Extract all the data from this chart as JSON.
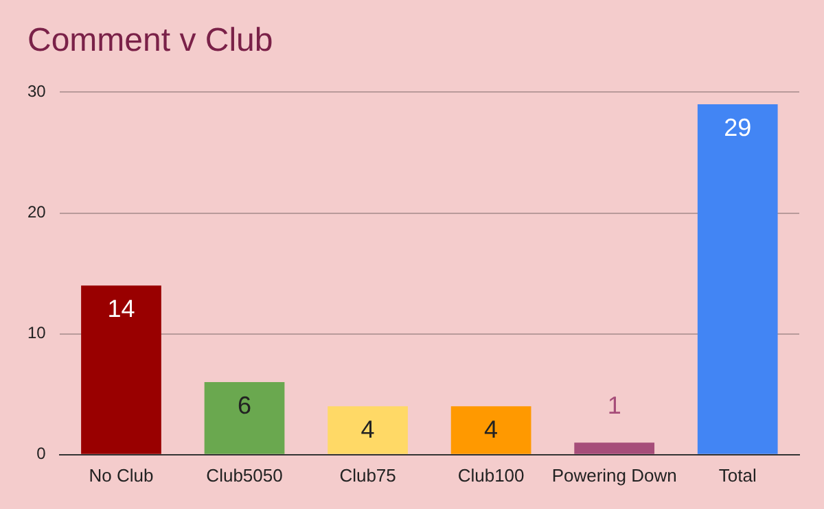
{
  "chart_data": {
    "type": "bar",
    "title": "Comment v Club",
    "categories": [
      "No Club",
      "Club5050",
      "Club75",
      "Club100",
      "Powering Down",
      "Total"
    ],
    "values": [
      14,
      6,
      4,
      4,
      1,
      29
    ],
    "colors": [
      "#990000",
      "#6aa84f",
      "#ffd966",
      "#ff9900",
      "#a64d79",
      "#4285f4"
    ],
    "ylim": [
      0,
      30
    ],
    "yticks": [
      0,
      10,
      20,
      30
    ],
    "grid": "y",
    "data_labels": true,
    "legend": false
  }
}
